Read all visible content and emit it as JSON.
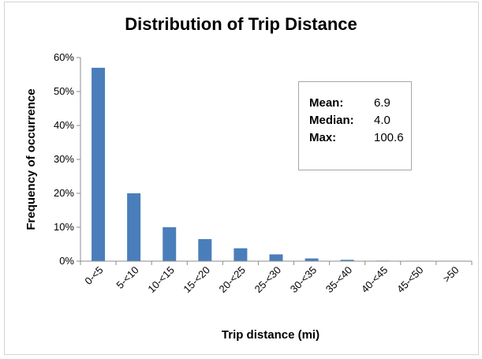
{
  "chart_data": {
    "type": "bar",
    "title": "Distribution of Trip Distance",
    "xlabel": "Trip distance (mi)",
    "ylabel": "Frequency of occurrence",
    "categories": [
      "0-<5",
      "5-<10",
      "10-<15",
      "15-<20",
      "20-<25",
      "25-<30",
      "30-<35",
      "35-<40",
      "40-<45",
      "45-<50",
      ">50"
    ],
    "values": [
      57,
      20,
      10,
      6.5,
      3.8,
      2.0,
      0.8,
      0.4,
      0.15,
      0.1,
      0.1
    ],
    "ylim": [
      0,
      60
    ],
    "yticks": [
      "0%",
      "10%",
      "20%",
      "30%",
      "40%",
      "50%",
      "60%"
    ],
    "grid": false,
    "bar_color": "#4a7ebb",
    "stats": [
      {
        "label": "Mean:",
        "value": "6.9"
      },
      {
        "label": "Median:",
        "value": "4.0"
      },
      {
        "label": "Max:",
        "value": "100.6"
      }
    ]
  }
}
